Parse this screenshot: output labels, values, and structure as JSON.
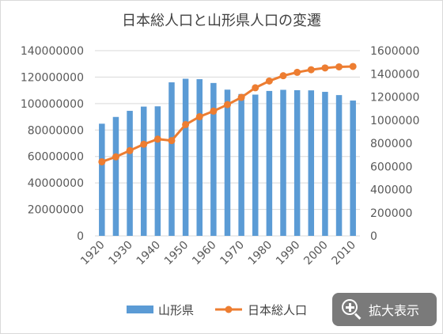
{
  "chart_data": {
    "type": "bar+line",
    "title": "日本総人口と山形県人口の変遷",
    "categories": [
      "1920",
      "1925",
      "1930",
      "1935",
      "1940",
      "1945",
      "1950",
      "1955",
      "1960",
      "1965",
      "1970",
      "1975",
      "1980",
      "1985",
      "1990",
      "1995",
      "2000",
      "2005",
      "2010"
    ],
    "x_tick_labels": [
      "1920",
      "1930",
      "1940",
      "1950",
      "1960",
      "1970",
      "1980",
      "1990",
      "2000",
      "2010"
    ],
    "series": [
      {
        "name": "山形県",
        "type": "bar",
        "axis": "right",
        "color": "#5b9bd5",
        "values": [
          968925,
          1027297,
          1080034,
          1116822,
          1119338,
          1326350,
          1357347,
          1353649,
          1320664,
          1263103,
          1225618,
          1220302,
          1251917,
          1261662,
          1258390,
          1256958,
          1244147,
          1216181,
          1168924
        ]
      },
      {
        "name": "日本総人口",
        "type": "line",
        "axis": "left",
        "color": "#ed7d31",
        "values": [
          55963053,
          59736822,
          64450005,
          69254148,
          73114308,
          71998104,
          84114574,
          90076594,
          94301623,
          99209137,
          104665171,
          111939643,
          117060396,
          121048923,
          123611167,
          125570246,
          126925843,
          127767994,
          128057352
        ]
      }
    ],
    "y_left": {
      "min": 0,
      "max": 140000000,
      "step": 20000000,
      "tick_labels": [
        "0",
        "20000000",
        "40000000",
        "60000000",
        "80000000",
        "100000000",
        "120000000",
        "140000000"
      ]
    },
    "y_right": {
      "min": 0,
      "max": 1600000,
      "step": 200000,
      "tick_labels": [
        "0",
        "200000",
        "400000",
        "600000",
        "800000",
        "1000000",
        "1200000",
        "1400000",
        "1600000"
      ]
    },
    "gridlines": true,
    "legend_position": "bottom"
  },
  "zoom_button": {
    "label": "拡大表示",
    "icon": "zoom-in-icon"
  }
}
